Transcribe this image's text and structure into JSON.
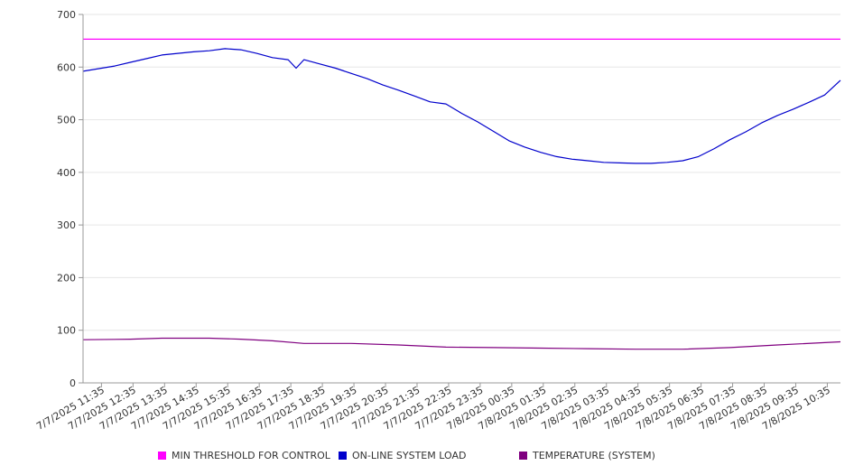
{
  "chart_data": {
    "type": "line",
    "title": "",
    "xlabel": "",
    "ylabel": "",
    "ylim": [
      0,
      700
    ],
    "yticks": [
      0,
      100,
      200,
      300,
      400,
      500,
      600,
      700
    ],
    "grid": true,
    "legend_position": "bottom",
    "x_tick_labels": [
      "7/7/2025 11:35",
      "7/7/2025 12:35",
      "7/7/2025 13:35",
      "7/7/2025 14:35",
      "7/7/2025 15:35",
      "7/7/2025 16:35",
      "7/7/2025 17:35",
      "7/7/2025 18:35",
      "7/7/2025 19:35",
      "7/7/2025 20:35",
      "7/7/2025 21:35",
      "7/7/2025 22:35",
      "7/7/2025 23:35",
      "7/8/2025 00:35",
      "7/8/2025 01:35",
      "7/8/2025 02:35",
      "7/8/2025 03:35",
      "7/8/2025 04:35",
      "7/8/2025 05:35",
      "7/8/2025 06:35",
      "7/8/2025 07:35",
      "7/8/2025 08:35",
      "7/8/2025 09:35",
      "7/8/2025 10:35"
    ],
    "x_start": "7/7/2025 11:00",
    "x_end": "7/8/2025 11:00",
    "series": [
      {
        "name": "MIN THRESHOLD FOR CONTROL",
        "color": "#ff00ff",
        "points": [
          [
            "7/7/2025 11:00",
            653
          ],
          [
            "7/8/2025 11:00",
            653
          ]
        ]
      },
      {
        "name": "ON-LINE SYSTEM LOAD",
        "color": "#0000cc",
        "points": [
          [
            "7/7/2025 11:00",
            592
          ],
          [
            "7/7/2025 11:30",
            597
          ],
          [
            "7/7/2025 12:00",
            602
          ],
          [
            "7/7/2025 12:30",
            609
          ],
          [
            "7/7/2025 13:00",
            616
          ],
          [
            "7/7/2025 13:30",
            623
          ],
          [
            "7/7/2025 14:00",
            626
          ],
          [
            "7/7/2025 14:30",
            629
          ],
          [
            "7/7/2025 15:00",
            631
          ],
          [
            "7/7/2025 15:30",
            635
          ],
          [
            "7/7/2025 16:00",
            633
          ],
          [
            "7/7/2025 16:30",
            626
          ],
          [
            "7/7/2025 17:00",
            618
          ],
          [
            "7/7/2025 17:30",
            614
          ],
          [
            "7/7/2025 17:45",
            598
          ],
          [
            "7/7/2025 18:00",
            614
          ],
          [
            "7/7/2025 18:30",
            606
          ],
          [
            "7/7/2025 19:00",
            598
          ],
          [
            "7/7/2025 19:30",
            588
          ],
          [
            "7/7/2025 20:00",
            578
          ],
          [
            "7/7/2025 20:30",
            566
          ],
          [
            "7/7/2025 21:00",
            556
          ],
          [
            "7/7/2025 21:30",
            545
          ],
          [
            "7/7/2025 22:00",
            534
          ],
          [
            "7/7/2025 22:30",
            530
          ],
          [
            "7/7/2025 23:00",
            512
          ],
          [
            "7/7/2025 23:30",
            496
          ],
          [
            "7/8/2025 00:00",
            478
          ],
          [
            "7/8/2025 00:30",
            460
          ],
          [
            "7/8/2025 01:00",
            448
          ],
          [
            "7/8/2025 01:30",
            438
          ],
          [
            "7/8/2025 02:00",
            430
          ],
          [
            "7/8/2025 02:30",
            425
          ],
          [
            "7/8/2025 03:00",
            422
          ],
          [
            "7/8/2025 03:30",
            419
          ],
          [
            "7/8/2025 04:00",
            418
          ],
          [
            "7/8/2025 04:30",
            417
          ],
          [
            "7/8/2025 05:00",
            417
          ],
          [
            "7/8/2025 05:30",
            419
          ],
          [
            "7/8/2025 06:00",
            422
          ],
          [
            "7/8/2025 06:30",
            430
          ],
          [
            "7/8/2025 07:00",
            445
          ],
          [
            "7/8/2025 07:30",
            462
          ],
          [
            "7/8/2025 08:00",
            477
          ],
          [
            "7/8/2025 08:30",
            494
          ],
          [
            "7/8/2025 09:00",
            508
          ],
          [
            "7/8/2025 09:30",
            520
          ],
          [
            "7/8/2025 10:00",
            533
          ],
          [
            "7/8/2025 10:30",
            547
          ],
          [
            "7/8/2025 11:00",
            575
          ]
        ]
      },
      {
        "name": "TEMPERATURE (SYSTEM)",
        "color": "#800080",
        "points": [
          [
            "7/7/2025 11:00",
            82
          ],
          [
            "7/7/2025 12:30",
            83
          ],
          [
            "7/7/2025 13:30",
            85
          ],
          [
            "7/7/2025 15:00",
            85
          ],
          [
            "7/7/2025 16:00",
            83
          ],
          [
            "7/7/2025 17:00",
            80
          ],
          [
            "7/7/2025 18:00",
            75
          ],
          [
            "7/7/2025 19:30",
            75
          ],
          [
            "7/7/2025 21:00",
            72
          ],
          [
            "7/7/2025 22:30",
            68
          ],
          [
            "7/8/2025 00:00",
            67
          ],
          [
            "7/8/2025 01:30",
            66
          ],
          [
            "7/8/2025 03:00",
            65
          ],
          [
            "7/8/2025 04:30",
            64
          ],
          [
            "7/8/2025 06:00",
            64
          ],
          [
            "7/8/2025 07:30",
            67
          ],
          [
            "7/8/2025 09:00",
            72
          ],
          [
            "7/8/2025 11:00",
            78
          ]
        ]
      }
    ]
  }
}
